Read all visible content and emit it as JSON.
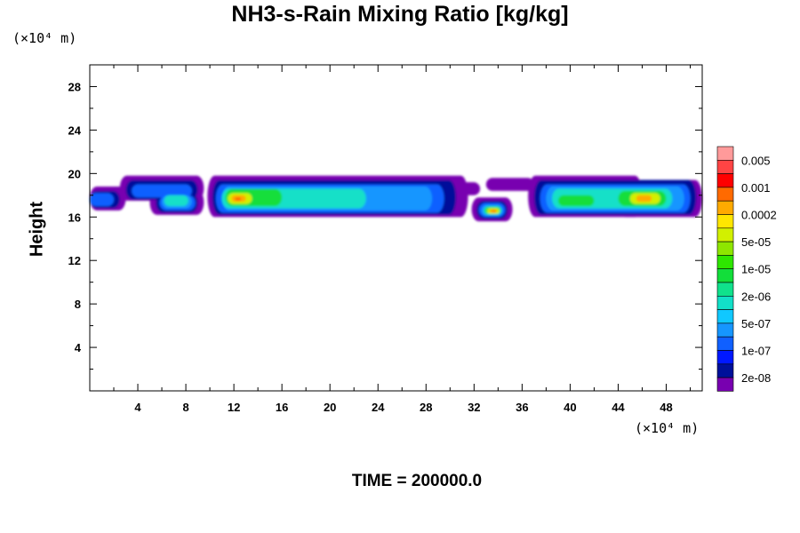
{
  "chart_data": {
    "type": "heatmap",
    "title": "NH3-s-Rain Mixing Ratio [kg/kg]",
    "ylabel": "Height",
    "x_unit": "(×10⁴ m)",
    "y_unit": "(×10⁴ m)",
    "xlim": [
      0,
      51
    ],
    "ylim": [
      0,
      30
    ],
    "x_ticks": [
      4,
      8,
      12,
      16,
      20,
      24,
      28,
      32,
      36,
      40,
      44,
      48
    ],
    "y_ticks": [
      4,
      8,
      12,
      16,
      20,
      24,
      28
    ],
    "footer": "TIME = 200000.0",
    "legend": {
      "labels": [
        "0.005",
        "0.001",
        "0.0002",
        "5e-05",
        "1e-05",
        "2e-06",
        "5e-07",
        "1e-07",
        "2e-08"
      ],
      "colors": [
        "#ff9a9a",
        "#ff4444",
        "#ff0000",
        "#ff6a00",
        "#ffaa00",
        "#ffe600",
        "#d2f000",
        "#8ee600",
        "#2ee600",
        "#12de3a",
        "#10e28c",
        "#12e0c8",
        "#10c8ff",
        "#1696ff",
        "#1060ff",
        "#0018ff",
        "#00109a",
        "#7800b0"
      ]
    },
    "layers": [
      {
        "level": 0,
        "blobs": [
          {
            "x0": 0,
            "x1": 3,
            "y0": 16.6,
            "y1": 18.8
          },
          {
            "x0": 2.5,
            "x1": 9.5,
            "y0": 17.5,
            "y1": 19.8
          },
          {
            "x0": 5,
            "x1": 9.5,
            "y0": 16.2,
            "y1": 18.5
          },
          {
            "x0": 9.8,
            "x1": 31.5,
            "y0": 16.0,
            "y1": 19.8
          },
          {
            "x0": 30.5,
            "x1": 32.5,
            "y0": 18.0,
            "y1": 19.2
          },
          {
            "x0": 31.8,
            "x1": 35.2,
            "y0": 15.6,
            "y1": 17.8
          },
          {
            "x0": 33,
            "x1": 37,
            "y0": 18.4,
            "y1": 19.6
          },
          {
            "x0": 36.5,
            "x1": 46,
            "y0": 16.0,
            "y1": 19.8
          },
          {
            "x0": 44,
            "x1": 51,
            "y0": 16.0,
            "y1": 19.4
          }
        ]
      },
      {
        "level": 1,
        "blobs": [
          {
            "x0": 0,
            "x1": 2.5,
            "y0": 16.8,
            "y1": 18.4
          },
          {
            "x0": 3,
            "x1": 9,
            "y0": 17.6,
            "y1": 19.4
          },
          {
            "x0": 5.5,
            "x1": 9,
            "y0": 16.4,
            "y1": 18.2
          },
          {
            "x0": 10.2,
            "x1": 30.5,
            "y0": 16.2,
            "y1": 19.4
          },
          {
            "x0": 32.2,
            "x1": 34.8,
            "y0": 15.8,
            "y1": 17.5
          },
          {
            "x0": 37,
            "x1": 50.5,
            "y0": 16.2,
            "y1": 19.4
          }
        ]
      },
      {
        "level": 2,
        "blobs": [
          {
            "x0": 0,
            "x1": 2,
            "y0": 17.0,
            "y1": 18.2
          },
          {
            "x0": 3.5,
            "x1": 8.5,
            "y0": 17.8,
            "y1": 19.0
          },
          {
            "x0": 5.8,
            "x1": 8.8,
            "y0": 16.6,
            "y1": 18.0
          },
          {
            "x0": 10.5,
            "x1": 29.5,
            "y0": 16.4,
            "y1": 19.0
          },
          {
            "x0": 32.4,
            "x1": 34.6,
            "y0": 16.0,
            "y1": 17.3
          },
          {
            "x0": 37.5,
            "x1": 50,
            "y0": 16.4,
            "y1": 19.0
          }
        ]
      },
      {
        "level": 3,
        "blobs": [
          {
            "x0": 6,
            "x1": 8.5,
            "y0": 16.8,
            "y1": 18.0
          },
          {
            "x0": 11,
            "x1": 28.5,
            "y0": 16.6,
            "y1": 18.8
          },
          {
            "x0": 32.6,
            "x1": 34.4,
            "y0": 16.1,
            "y1": 17.1
          },
          {
            "x0": 38,
            "x1": 49.5,
            "y0": 16.6,
            "y1": 18.8
          }
        ]
      },
      {
        "level": 4,
        "blobs": [
          {
            "x0": 6.2,
            "x1": 8.2,
            "y0": 17.0,
            "y1": 18.0
          },
          {
            "x0": 11,
            "x1": 23,
            "y0": 16.8,
            "y1": 18.6
          },
          {
            "x0": 32.8,
            "x1": 34.3,
            "y0": 16.2,
            "y1": 17.0
          },
          {
            "x0": 38.5,
            "x1": 48.5,
            "y0": 16.8,
            "y1": 18.6
          }
        ]
      },
      {
        "level": 5,
        "blobs": [
          {
            "x0": 11.3,
            "x1": 16,
            "y0": 17.0,
            "y1": 18.6
          },
          {
            "x0": 32.9,
            "x1": 34.2,
            "y0": 16.3,
            "y1": 16.9
          },
          {
            "x0": 39,
            "x1": 42,
            "y0": 17.0,
            "y1": 18.0
          },
          {
            "x0": 44,
            "x1": 48,
            "y0": 17.0,
            "y1": 18.4
          }
        ]
      },
      {
        "level": 6,
        "blobs": [
          {
            "x0": 11.5,
            "x1": 13.5,
            "y0": 17.2,
            "y1": 18.2
          },
          {
            "x0": 33.1,
            "x1": 34.1,
            "y0": 16.3,
            "y1": 16.8
          },
          {
            "x0": 45,
            "x1": 47.5,
            "y0": 17.2,
            "y1": 18.2
          }
        ]
      },
      {
        "level": 7,
        "blobs": [
          {
            "x0": 11.8,
            "x1": 13,
            "y0": 17.4,
            "y1": 18.0
          },
          {
            "x0": 33.3,
            "x1": 33.9,
            "y0": 16.4,
            "y1": 16.7
          },
          {
            "x0": 45.5,
            "x1": 46.8,
            "y0": 17.4,
            "y1": 18.0
          }
        ]
      },
      {
        "level": 8,
        "blobs": [
          {
            "x0": 12.1,
            "x1": 12.6,
            "y0": 17.5,
            "y1": 17.8
          },
          {
            "x0": 33.5,
            "x1": 33.8,
            "y0": 16.45,
            "y1": 16.6
          }
        ]
      }
    ]
  }
}
